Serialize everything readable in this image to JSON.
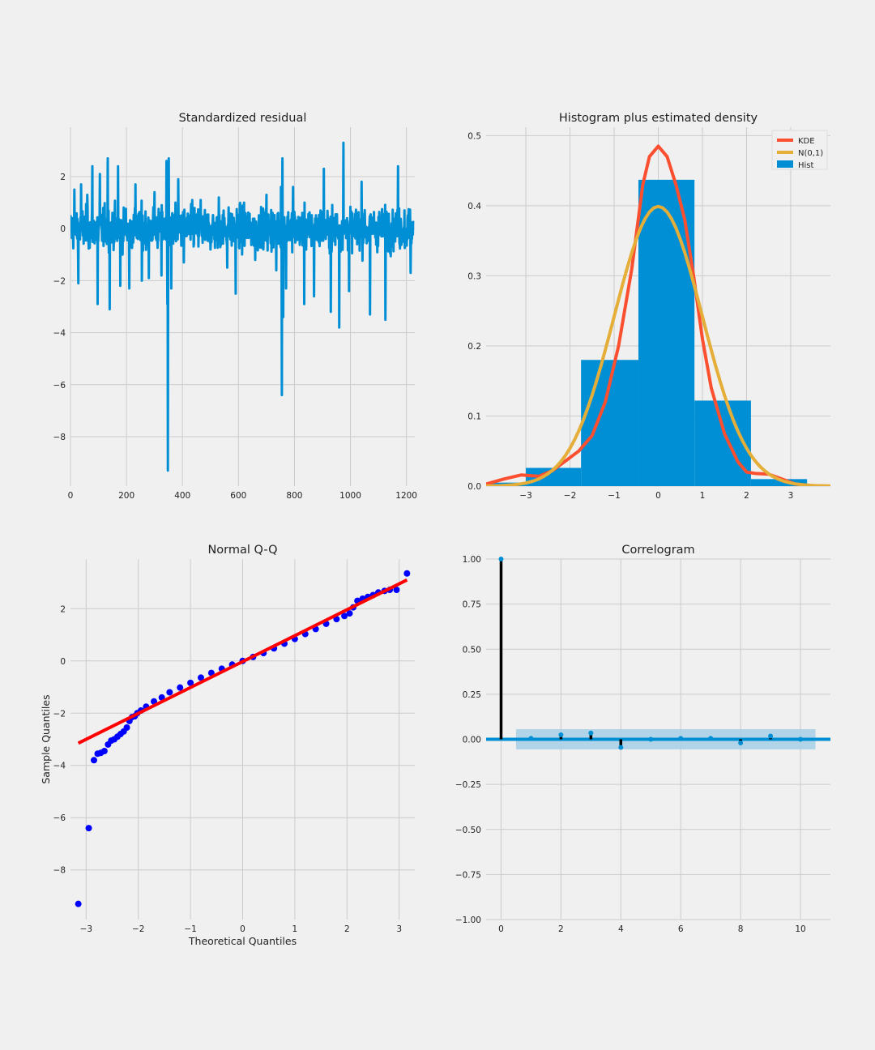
{
  "chart_data": [
    {
      "panel": "standardized-residual",
      "type": "line",
      "title": "Standardized residual",
      "xlabel": "",
      "ylabel": "",
      "xlim": [
        0,
        1230
      ],
      "ylim": [
        -9.9,
        3.9
      ],
      "xticks": [
        0,
        200,
        400,
        600,
        800,
        1000,
        1200
      ],
      "yticks": [
        -8,
        -6,
        -4,
        -2,
        0,
        2
      ],
      "xtick_labels": [
        "0",
        "200",
        "400",
        "600",
        "800",
        "1000",
        "1200"
      ],
      "ytick_labels": [
        "−8",
        "−6",
        "−4",
        "−2",
        "0",
        "2"
      ],
      "grid": true,
      "series_color": "#008fd5",
      "n_points": 1225,
      "notable_points": [
        {
          "x": 14,
          "y": 1.5
        },
        {
          "x": 28,
          "y": -2.1
        },
        {
          "x": 38,
          "y": 1.7
        },
        {
          "x": 60,
          "y": 1.3
        },
        {
          "x": 78,
          "y": 2.4
        },
        {
          "x": 97,
          "y": -2.9
        },
        {
          "x": 105,
          "y": 2.1
        },
        {
          "x": 133,
          "y": 2.7
        },
        {
          "x": 140,
          "y": -3.1
        },
        {
          "x": 170,
          "y": 2.4
        },
        {
          "x": 178,
          "y": -2.2
        },
        {
          "x": 210,
          "y": -2.3
        },
        {
          "x": 232,
          "y": 1.7
        },
        {
          "x": 255,
          "y": -2.0
        },
        {
          "x": 280,
          "y": -1.9
        },
        {
          "x": 300,
          "y": 1.4
        },
        {
          "x": 325,
          "y": -1.8
        },
        {
          "x": 343,
          "y": 2.6
        },
        {
          "x": 346,
          "y": -2.9
        },
        {
          "x": 348,
          "y": -9.3
        },
        {
          "x": 351,
          "y": 2.7
        },
        {
          "x": 360,
          "y": -2.3
        },
        {
          "x": 385,
          "y": 1.9
        },
        {
          "x": 405,
          "y": -1.3
        },
        {
          "x": 435,
          "y": 1.1
        },
        {
          "x": 465,
          "y": 1.1
        },
        {
          "x": 500,
          "y": -0.8
        },
        {
          "x": 530,
          "y": 1.2
        },
        {
          "x": 560,
          "y": -1.5
        },
        {
          "x": 590,
          "y": -2.5
        },
        {
          "x": 620,
          "y": 1.0
        },
        {
          "x": 660,
          "y": -1.2
        },
        {
          "x": 700,
          "y": 1.3
        },
        {
          "x": 735,
          "y": -1.6
        },
        {
          "x": 752,
          "y": 1.6
        },
        {
          "x": 755,
          "y": -6.4
        },
        {
          "x": 757,
          "y": 2.7
        },
        {
          "x": 760,
          "y": -3.4
        },
        {
          "x": 770,
          "y": -2.3
        },
        {
          "x": 795,
          "y": 1.6
        },
        {
          "x": 835,
          "y": -2.9
        },
        {
          "x": 870,
          "y": -2.6
        },
        {
          "x": 905,
          "y": 2.3
        },
        {
          "x": 930,
          "y": -3.2
        },
        {
          "x": 960,
          "y": -3.8
        },
        {
          "x": 975,
          "y": 3.3
        },
        {
          "x": 995,
          "y": -2.4
        },
        {
          "x": 1040,
          "y": 1.8
        },
        {
          "x": 1070,
          "y": -3.3
        },
        {
          "x": 1125,
          "y": -3.5
        },
        {
          "x": 1170,
          "y": 2.4
        },
        {
          "x": 1215,
          "y": -1.7
        }
      ]
    },
    {
      "panel": "histogram-density",
      "type": "bar",
      "title": "Histogram plus estimated density",
      "xlabel": "",
      "ylabel": "",
      "xlim": [
        -3.9,
        3.9
      ],
      "ylim": [
        0,
        0.512
      ],
      "xticks": [
        -3,
        -2,
        -1,
        0,
        1,
        2,
        3
      ],
      "yticks": [
        0.0,
        0.1,
        0.2,
        0.3,
        0.4,
        0.5
      ],
      "xtick_labels": [
        "−3",
        "−2",
        "−1",
        "0",
        "1",
        "2",
        "3"
      ],
      "ytick_labels": [
        "0.0",
        "0.1",
        "0.2",
        "0.3",
        "0.4",
        "0.5"
      ],
      "grid": true,
      "legend_position": "top-right",
      "legend": [
        {
          "label": "KDE",
          "color": "#fc4f30"
        },
        {
          "label": "N(0,1)",
          "color": "#e5ae38"
        },
        {
          "label": "Hist",
          "color": "#008fd5"
        }
      ],
      "hist_bins": [
        {
          "x0": -4.25,
          "x1": -3.0,
          "value": 0.005
        },
        {
          "x0": -3.0,
          "x1": -1.75,
          "value": 0.026
        },
        {
          "x0": -1.75,
          "x1": -0.45,
          "value": 0.18
        },
        {
          "x0": -0.45,
          "x1": 0.82,
          "value": 0.437
        },
        {
          "x0": 0.82,
          "x1": 2.1,
          "value": 0.122
        },
        {
          "x0": 2.1,
          "x1": 3.37,
          "value": 0.01
        }
      ],
      "kde": {
        "x": [
          -3.9,
          -3.5,
          -3.1,
          -2.7,
          -2.4,
          -2.1,
          -1.8,
          -1.5,
          -1.2,
          -0.9,
          -0.6,
          -0.35,
          -0.2,
          0.0,
          0.2,
          0.4,
          0.6,
          0.8,
          1.0,
          1.2,
          1.5,
          1.8,
          2.0,
          2.2,
          2.5,
          2.8,
          3.1,
          3.5,
          3.9
        ],
        "y": [
          0.003,
          0.01,
          0.016,
          0.014,
          0.022,
          0.036,
          0.05,
          0.072,
          0.12,
          0.2,
          0.31,
          0.43,
          0.47,
          0.485,
          0.47,
          0.43,
          0.38,
          0.3,
          0.21,
          0.14,
          0.075,
          0.035,
          0.02,
          0.018,
          0.017,
          0.01,
          0.003,
          0.0005,
          0.0
        ]
      },
      "normal": {
        "mean": 0,
        "std": 1
      }
    },
    {
      "panel": "normal-qq",
      "type": "scatter",
      "title": "Normal Q-Q",
      "xlabel": "Theoretical Quantiles",
      "ylabel": "Sample Quantiles",
      "xlim": [
        -3.3,
        3.3
      ],
      "ylim": [
        -9.9,
        3.9
      ],
      "xticks": [
        -3,
        -2,
        -1,
        0,
        1,
        2,
        3
      ],
      "yticks": [
        -8,
        -6,
        -4,
        -2,
        0,
        2
      ],
      "xtick_labels": [
        "−3",
        "−2",
        "−1",
        "0",
        "1",
        "2",
        "3"
      ],
      "ytick_labels": [
        "−8",
        "−6",
        "−4",
        "−2",
        "0",
        "2"
      ],
      "grid": true,
      "point_color": "#0000ff",
      "line_color": "#ff0000",
      "reference_line": {
        "x": [
          -3.15,
          3.15
        ],
        "y": [
          -3.15,
          3.1
        ]
      },
      "points": {
        "x": [
          -3.15,
          -2.95,
          -2.85,
          -2.78,
          -2.72,
          -2.65,
          -2.58,
          -2.52,
          -2.46,
          -2.4,
          -2.34,
          -2.28,
          -2.22,
          -2.17,
          -2.12,
          -2.07,
          -2.02,
          -1.95,
          -1.85,
          -1.7,
          -1.55,
          -1.4,
          -1.2,
          -1.0,
          -0.8,
          -0.6,
          -0.4,
          -0.2,
          0.0,
          0.2,
          0.4,
          0.6,
          0.8,
          1.0,
          1.2,
          1.4,
          1.6,
          1.8,
          1.95,
          2.05,
          2.12,
          2.2,
          2.3,
          2.4,
          2.5,
          2.6,
          2.72,
          2.82,
          2.95,
          3.15
        ],
        "y": [
          -9.3,
          -6.4,
          -3.8,
          -3.55,
          -3.52,
          -3.45,
          -3.2,
          -3.05,
          -3.0,
          -2.9,
          -2.8,
          -2.7,
          -2.55,
          -2.3,
          -2.15,
          -2.12,
          -2.0,
          -1.9,
          -1.75,
          -1.55,
          -1.4,
          -1.2,
          -1.02,
          -0.84,
          -0.64,
          -0.46,
          -0.3,
          -0.14,
          0.0,
          0.15,
          0.3,
          0.48,
          0.66,
          0.84,
          1.03,
          1.22,
          1.42,
          1.6,
          1.72,
          1.82,
          2.05,
          2.3,
          2.38,
          2.45,
          2.52,
          2.62,
          2.68,
          2.72,
          2.72,
          3.35
        ]
      }
    },
    {
      "panel": "correlogram",
      "type": "bar",
      "title": "Correlogram",
      "xlabel": "",
      "ylabel": "",
      "xlim": [
        -0.5,
        11
      ],
      "ylim": [
        -1.0,
        1.0
      ],
      "xticks": [
        0,
        2,
        4,
        6,
        8,
        10
      ],
      "yticks": [
        -1.0,
        -0.75,
        -0.5,
        -0.25,
        0.0,
        0.25,
        0.5,
        0.75,
        1.0
      ],
      "xtick_labels": [
        "0",
        "2",
        "4",
        "6",
        "8",
        "10"
      ],
      "ytick_labels": [
        "−1.00",
        "−0.75",
        "−0.50",
        "−0.25",
        "0.00",
        "0.25",
        "0.50",
        "0.75",
        "1.00"
      ],
      "grid": true,
      "lags": [
        0,
        1,
        2,
        3,
        4,
        5,
        6,
        7,
        8,
        9,
        10
      ],
      "acf": [
        1.0,
        0.005,
        0.025,
        0.035,
        -0.045,
        0.0,
        0.005,
        0.005,
        -0.02,
        0.018,
        0.0
      ],
      "confidence_band": {
        "from_lag": 0.5,
        "to_lag": 10.5,
        "value": 0.056
      },
      "colors": {
        "stem": "#000000",
        "marker": "#008fd5",
        "band": "#a6cfe6",
        "zero_line": "#008fd5"
      }
    }
  ]
}
